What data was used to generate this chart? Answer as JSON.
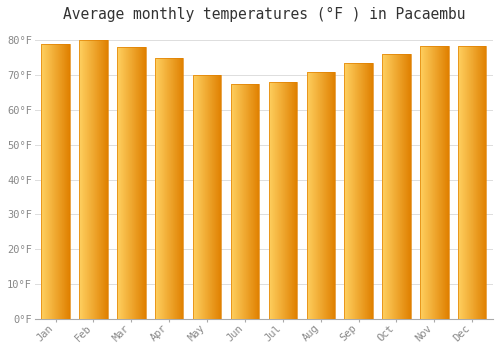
{
  "title": "Average monthly temperatures (°F ) in Pacaembu",
  "months": [
    "Jan",
    "Feb",
    "Mar",
    "Apr",
    "May",
    "Jun",
    "Jul",
    "Aug",
    "Sep",
    "Oct",
    "Nov",
    "Dec"
  ],
  "values": [
    79,
    80,
    78,
    75,
    70,
    67.5,
    68,
    71,
    73.5,
    76,
    78.5,
    78.5
  ],
  "bar_color_light": "#FFD060",
  "bar_color_main": "#FFA500",
  "bar_color_dark": "#E08000",
  "background_color": "#FFFFFF",
  "grid_color": "#DDDDDD",
  "ytick_labels": [
    "0°F",
    "10°F",
    "20°F",
    "30°F",
    "40°F",
    "50°F",
    "60°F",
    "70°F",
    "80°F"
  ],
  "ytick_values": [
    0,
    10,
    20,
    30,
    40,
    50,
    60,
    70,
    80
  ],
  "ylim": [
    0,
    83
  ],
  "title_fontsize": 10.5,
  "tick_fontsize": 7.5,
  "tick_color": "#888888",
  "font_family": "monospace",
  "bar_width": 0.75,
  "figsize": [
    5.0,
    3.5
  ],
  "dpi": 100
}
